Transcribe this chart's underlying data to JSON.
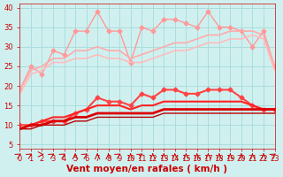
{
  "x": [
    0,
    1,
    2,
    3,
    4,
    5,
    6,
    7,
    8,
    9,
    10,
    11,
    12,
    13,
    14,
    15,
    16,
    17,
    18,
    19,
    20,
    21,
    22,
    23
  ],
  "lines": [
    {
      "color": "#ff9999",
      "linewidth": 1.0,
      "marker": "D",
      "markersize": 2.5,
      "values": [
        19,
        25,
        23,
        29,
        28,
        34,
        34,
        39,
        34,
        34,
        26,
        35,
        34,
        37,
        37,
        36,
        35,
        39,
        35,
        35,
        34,
        30,
        34,
        25
      ]
    },
    {
      "color": "#ffaaaa",
      "linewidth": 1.2,
      "marker": null,
      "markersize": 0,
      "values": [
        19,
        24,
        25,
        27,
        27,
        29,
        29,
        30,
        29,
        29,
        27,
        28,
        29,
        30,
        31,
        31,
        32,
        33,
        33,
        34,
        34,
        34,
        33,
        25
      ]
    },
    {
      "color": "#ffbbbb",
      "linewidth": 1.2,
      "marker": null,
      "markersize": 0,
      "values": [
        18,
        23,
        24,
        26,
        26,
        27,
        27,
        28,
        27,
        27,
        26,
        26,
        27,
        28,
        29,
        29,
        30,
        31,
        31,
        32,
        32,
        33,
        32,
        24
      ]
    },
    {
      "color": "#ff4444",
      "linewidth": 1.5,
      "marker": "D",
      "markersize": 2.5,
      "values": [
        10,
        10,
        11,
        11,
        11,
        13,
        14,
        17,
        16,
        16,
        15,
        18,
        17,
        19,
        19,
        18,
        18,
        19,
        19,
        19,
        17,
        15,
        14,
        14
      ]
    },
    {
      "color": "#ff2222",
      "linewidth": 1.5,
      "marker": null,
      "markersize": 0,
      "values": [
        9,
        10,
        11,
        12,
        12,
        13,
        14,
        15,
        15,
        15,
        14,
        15,
        15,
        16,
        16,
        16,
        16,
        16,
        16,
        16,
        16,
        15,
        14,
        14
      ]
    },
    {
      "color": "#dd0000",
      "linewidth": 2.0,
      "marker": null,
      "markersize": 0,
      "values": [
        9,
        10,
        10,
        11,
        11,
        12,
        12,
        13,
        13,
        13,
        13,
        13,
        13,
        14,
        14,
        14,
        14,
        14,
        14,
        14,
        14,
        14,
        14,
        14
      ]
    },
    {
      "color": "#bb0000",
      "linewidth": 1.0,
      "marker": null,
      "markersize": 0,
      "values": [
        9,
        9,
        10,
        10,
        10,
        11,
        11,
        12,
        12,
        12,
        12,
        12,
        12,
        13,
        13,
        13,
        13,
        13,
        13,
        13,
        13,
        13,
        13,
        13
      ]
    }
  ],
  "xlabel": "Vent moyen/en rafales ( km/h )",
  "ylabel": "",
  "xlim": [
    0,
    23
  ],
  "ylim": [
    4,
    41
  ],
  "yticks": [
    5,
    10,
    15,
    20,
    25,
    30,
    35,
    40
  ],
  "xticks": [
    0,
    1,
    2,
    3,
    4,
    5,
    6,
    7,
    8,
    9,
    10,
    11,
    12,
    13,
    14,
    15,
    16,
    17,
    18,
    19,
    20,
    21,
    22,
    23
  ],
  "bg_color": "#d0f0f0",
  "grid_color": "#aadddd",
  "xlabel_color": "#cc0000",
  "tick_color": "#cc0000",
  "xlabel_fontsize": 7.5,
  "tick_fontsize": 6.0
}
